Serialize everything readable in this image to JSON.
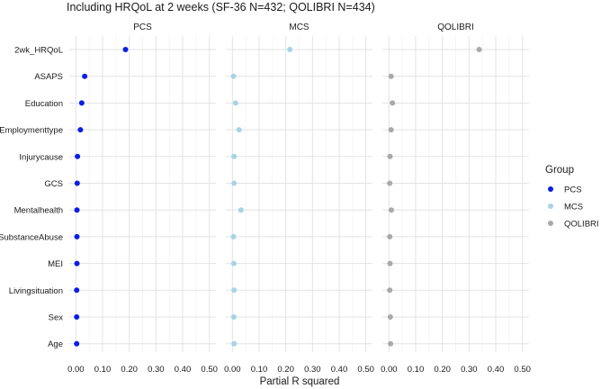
{
  "chart_data": {
    "type": "scatter",
    "title": "Including HRQoL at 2 weeks (SF-36 N=432; QOLIBRI N=434)",
    "xlabel": "Partial R squared",
    "ylabel": "",
    "xlim": [
      0,
      0.5
    ],
    "x_ticks": [
      "0.00",
      "0.10",
      "0.20",
      "0.30",
      "0.40",
      "0.50"
    ],
    "grid": true,
    "legend_title": "Group",
    "legend_position": "right",
    "categories": [
      "2wk_HRQoL",
      "ASAPS",
      "Education",
      "Employmenttype",
      "Injurycause",
      "GCS",
      "Mentalhealth",
      "SubstanceAbuse",
      "MEI",
      "Livingsituation",
      "Sex",
      "Age"
    ],
    "series": [
      {
        "name": "PCS",
        "color": "#0a1ee6",
        "values": [
          0.186,
          0.033,
          0.022,
          0.017,
          0.006,
          0.005,
          0.004,
          0.004,
          0.004,
          0.003,
          0.003,
          0.003
        ]
      },
      {
        "name": "MCS",
        "color": "#a6d4e6",
        "values": [
          0.215,
          0.004,
          0.012,
          0.025,
          0.006,
          0.006,
          0.032,
          0.004,
          0.005,
          0.006,
          0.005,
          0.006
        ]
      },
      {
        "name": "QOLIBRI",
        "color": "#a9a9a9",
        "values": [
          0.338,
          0.008,
          0.013,
          0.008,
          0.004,
          0.003,
          0.009,
          0.003,
          0.004,
          0.003,
          0.005,
          0.006
        ]
      }
    ]
  }
}
